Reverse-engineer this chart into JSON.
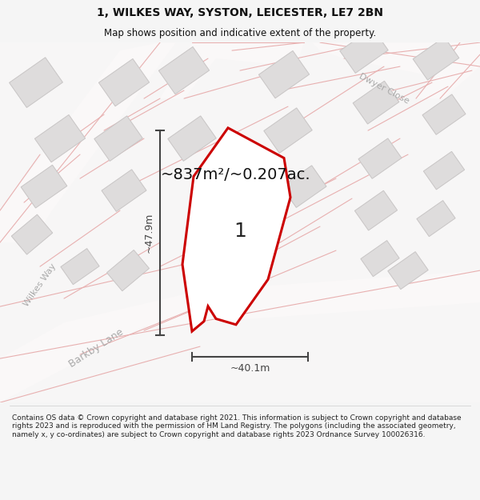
{
  "title_line1": "1, WILKES WAY, SYSTON, LEICESTER, LE7 2BN",
  "title_line2": "Map shows position and indicative extent of the property.",
  "area_text": "~837m²/~0.207ac.",
  "dim_vertical": "~47.9m",
  "dim_horizontal": "~40.1m",
  "plot_number": "1",
  "street_wilkes": "Wilkes Way",
  "street_barkby": "Barkby Lane",
  "street_dwyer": "Dwyer Close",
  "footer": "Contains OS data © Crown copyright and database right 2021. This information is subject to Crown copyright and database rights 2023 and is reproduced with the permission of HM Land Registry. The polygons (including the associated geometry, namely x, y co-ordinates) are subject to Crown copyright and database rights 2023 Ordnance Survey 100026316.",
  "bg_color": "#f5f5f5",
  "map_bg": "#f7f6f6",
  "road_edge": "#e8b0b0",
  "road_fill": "#faf8f8",
  "building_fill": "#dedcdc",
  "building_edge": "#c8c5c5",
  "plot_fill": "#ffffff",
  "plot_edge": "#cc0000",
  "dim_color": "#444444",
  "street_label_color": "#aaaaaa",
  "title_color": "#111111",
  "footer_color": "#222222"
}
